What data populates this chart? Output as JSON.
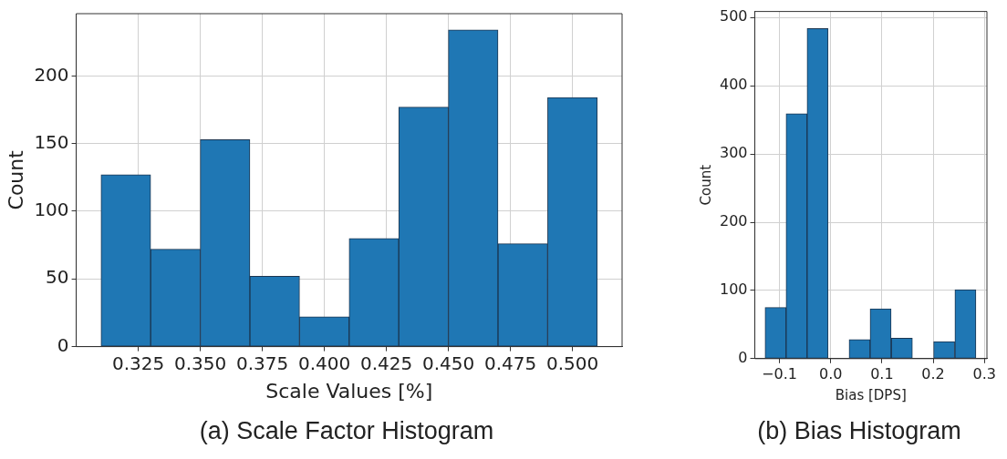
{
  "chart_data": [
    {
      "type": "histogram",
      "title": "(a) Scale Factor Histogram",
      "xlabel": "Scale Values [%]",
      "ylabel": "Count",
      "color": "#1f77b4",
      "bins": [
        0.31,
        0.33,
        0.35,
        0.37,
        0.39,
        0.41,
        0.43,
        0.45,
        0.47,
        0.49,
        0.51
      ],
      "values": [
        127,
        72,
        153,
        52,
        22,
        80,
        177,
        234,
        76,
        184
      ],
      "xlim": [
        0.3,
        0.52
      ],
      "ylim": [
        0,
        246
      ],
      "xticks": [
        0.325,
        {
          "value": 0.35,
          "label": "0.350"
        },
        0.375,
        {
          "value": 0.4,
          "label": "0.400"
        },
        0.425,
        {
          "value": 0.45,
          "label": "0.450"
        },
        0.475,
        {
          "value": 0.5,
          "label": "0.500"
        }
      ],
      "yticks": [
        0,
        50,
        100,
        150,
        200
      ],
      "grid": true,
      "legend": false
    },
    {
      "type": "histogram",
      "title": "(b) Bias Histogram",
      "xlabel": "Bias [DPS]",
      "ylabel": "Count",
      "color": "#1f77b4",
      "bins": [
        -0.128,
        -0.087,
        -0.046,
        -0.005,
        0.036,
        0.077,
        0.118,
        0.16,
        0.201,
        0.242,
        0.284
      ],
      "values": [
        75,
        359,
        484,
        0,
        28,
        73,
        30,
        0,
        25,
        101
      ],
      "xlim": [
        -0.148,
        0.305
      ],
      "ylim": [
        0,
        509
      ],
      "xticks": [
        {
          "value": -0.1,
          "label": "−0.1"
        },
        {
          "value": 0,
          "label": "0.0"
        },
        0.1,
        0.2,
        0.3
      ],
      "yticks": [
        0,
        100,
        200,
        300,
        400,
        500
      ],
      "grid": true,
      "legend": false
    }
  ]
}
